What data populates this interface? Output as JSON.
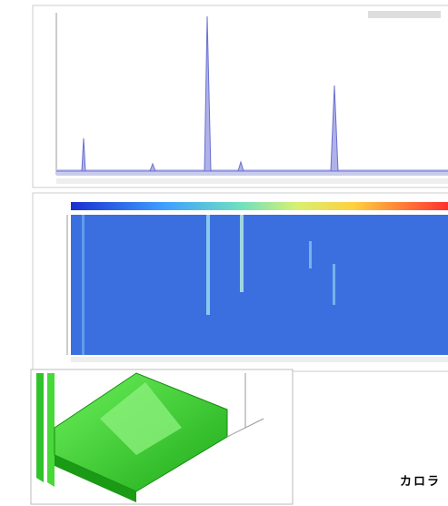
{
  "caption": "カロラ"
}
